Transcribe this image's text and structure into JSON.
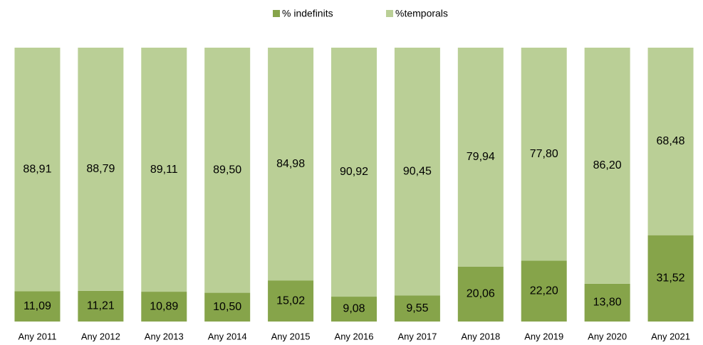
{
  "chart_data": {
    "type": "bar",
    "stacked": true,
    "categories": [
      "Any 2011",
      "Any 2012",
      "Any 2013",
      "Any 2014",
      "Any 2015",
      "Any 2016",
      "Any 2017",
      "Any 2018",
      "Any 2019",
      "Any 2020",
      "Any 2021"
    ],
    "series": [
      {
        "name": "% indefinits",
        "color": "#86a44a",
        "values": [
          11.09,
          11.21,
          10.89,
          10.5,
          15.02,
          9.08,
          9.55,
          20.06,
          22.2,
          13.8,
          31.52
        ],
        "value_labels": [
          "11,09",
          "11,21",
          "10,89",
          "10,50",
          "15,02",
          "9,08",
          "9,55",
          "20,06",
          "22,20",
          "13,80",
          "31,52"
        ]
      },
      {
        "name": "%temporals",
        "color": "#bacf96",
        "values": [
          88.91,
          88.79,
          89.11,
          89.5,
          84.98,
          90.92,
          90.45,
          79.94,
          77.8,
          86.2,
          68.48
        ],
        "value_labels": [
          "88,91",
          "88,79",
          "89,11",
          "89,50",
          "84,98",
          "90,92",
          "90,45",
          "79,94",
          "77,80",
          "86,20",
          "68,48"
        ]
      }
    ],
    "ylim": [
      0,
      100
    ],
    "legend": "top"
  }
}
